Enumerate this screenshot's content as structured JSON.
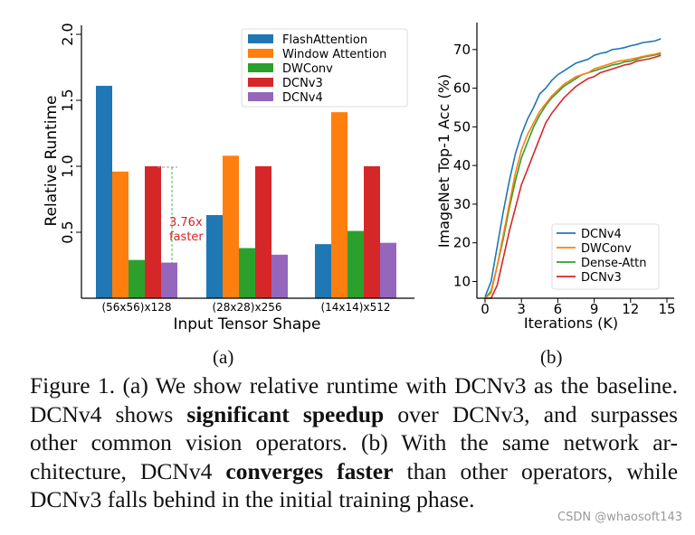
{
  "chart_data": [
    {
      "type": "bar",
      "xlabel": "Input Tensor Shape",
      "ylabel": "Relative Runtime",
      "categories": [
        "(56x56)x128",
        "(28x28)x256",
        "(14x14)x512"
      ],
      "ylim": [
        0,
        2.0
      ],
      "yticks": [
        "0.5",
        "1.0",
        "1.5",
        "2.0"
      ],
      "legend_position": "top-right",
      "series": [
        {
          "name": "FlashAttention",
          "color": "#1f77b4",
          "values": [
            1.61,
            0.63,
            0.41
          ]
        },
        {
          "name": "Window Attention",
          "color": "#ff7f0e",
          "values": [
            0.96,
            1.08,
            1.41
          ]
        },
        {
          "name": "DWConv",
          "color": "#2ca02c",
          "values": [
            0.29,
            0.38,
            0.51
          ]
        },
        {
          "name": "DCNv3",
          "color": "#d62728",
          "values": [
            1.0,
            1.0,
            1.0
          ]
        },
        {
          "name": "DCNv4",
          "color": "#9467bd",
          "values": [
            0.27,
            0.33,
            0.42
          ]
        }
      ],
      "annotation": {
        "line1": "3.76x",
        "line2": "faster",
        "color": "#d62728"
      },
      "grid": false
    },
    {
      "type": "line",
      "xlabel": "Iterations (K)",
      "ylabel": "ImageNet Top-1 Acc (%)",
      "xlim": [
        -0.5,
        15.5
      ],
      "ylim": [
        5,
        74
      ],
      "xticks": [
        "0",
        "3",
        "6",
        "9",
        "12",
        "15"
      ],
      "yticks": [
        "10",
        "20",
        "30",
        "40",
        "50",
        "60",
        "70"
      ],
      "legend_position": "bottom-right",
      "grid": false,
      "x": [
        0,
        0.5,
        1,
        1.5,
        2,
        2.5,
        3,
        3.5,
        4,
        4.5,
        5,
        5.5,
        6,
        6.5,
        7,
        7.5,
        8,
        8.5,
        9,
        9.5,
        10,
        10.5,
        11,
        11.5,
        12,
        12.5,
        13,
        13.5,
        14,
        14.5
      ],
      "series": [
        {
          "name": "DCNv4",
          "color": "#1f77b4",
          "values": [
            6,
            10,
            19,
            28,
            36,
            43,
            48,
            52,
            55,
            58.5,
            60,
            62,
            63.5,
            64.5,
            65.5,
            66.5,
            67,
            67.5,
            68.5,
            69,
            69.3,
            70,
            70.2,
            70.5,
            71,
            71.3,
            71.8,
            72,
            72.2,
            72.8
          ]
        },
        {
          "name": "DWConv",
          "color": "#ff7f0e",
          "values": [
            5,
            7,
            14,
            22,
            30,
            38,
            44,
            48,
            51,
            54,
            56,
            58,
            59.5,
            61,
            62,
            63,
            63.5,
            64,
            65,
            65.5,
            66,
            66.5,
            67,
            67.2,
            67.5,
            67.8,
            68.2,
            68.5,
            68.8,
            69.2
          ]
        },
        {
          "name": "Dense-Attn",
          "color": "#2ca02c",
          "values": [
            5,
            7.5,
            14,
            21,
            29,
            36,
            42,
            46,
            50,
            53,
            55.5,
            57.5,
            59,
            60.5,
            61.5,
            62.5,
            63.5,
            64,
            64.5,
            65,
            65.5,
            66,
            66.3,
            66.8,
            67,
            67.5,
            68,
            68.3,
            68.6,
            68.9
          ]
        },
        {
          "name": "DCNv3",
          "color": "#d62728",
          "values": [
            4,
            5,
            9,
            16,
            23,
            29,
            35,
            39,
            43,
            47,
            51,
            53.5,
            55.5,
            57.5,
            59,
            60.5,
            61.5,
            62.5,
            63,
            64,
            64.5,
            65,
            65.5,
            66,
            66.3,
            67,
            67.3,
            67.6,
            68,
            68.5
          ]
        }
      ]
    }
  ],
  "subfigure_labels": {
    "a": "(a)",
    "b": "(b)"
  },
  "caption": {
    "lines": [
      [
        {
          "t": "Figure 1. (a) We show relative runtime with DCNv3 as the baseline.",
          "b": false
        }
      ],
      [
        {
          "t": "DCNv4 shows ",
          "b": false
        },
        {
          "t": "significant speedup",
          "b": true
        },
        {
          "t": " over DCNv3, and surpasses",
          "b": false
        }
      ],
      [
        {
          "t": "other common vision operators.  (b) With the same network ar-",
          "b": false
        }
      ],
      [
        {
          "t": "chitecture, DCNv4 ",
          "b": false
        },
        {
          "t": "converges faster",
          "b": true
        },
        {
          "t": " than other operators, while",
          "b": false
        }
      ],
      [
        {
          "t": "DCNv3 falls behind in the initial training phase.",
          "b": false
        }
      ]
    ]
  },
  "watermark": "CSDN @whaosoft143"
}
